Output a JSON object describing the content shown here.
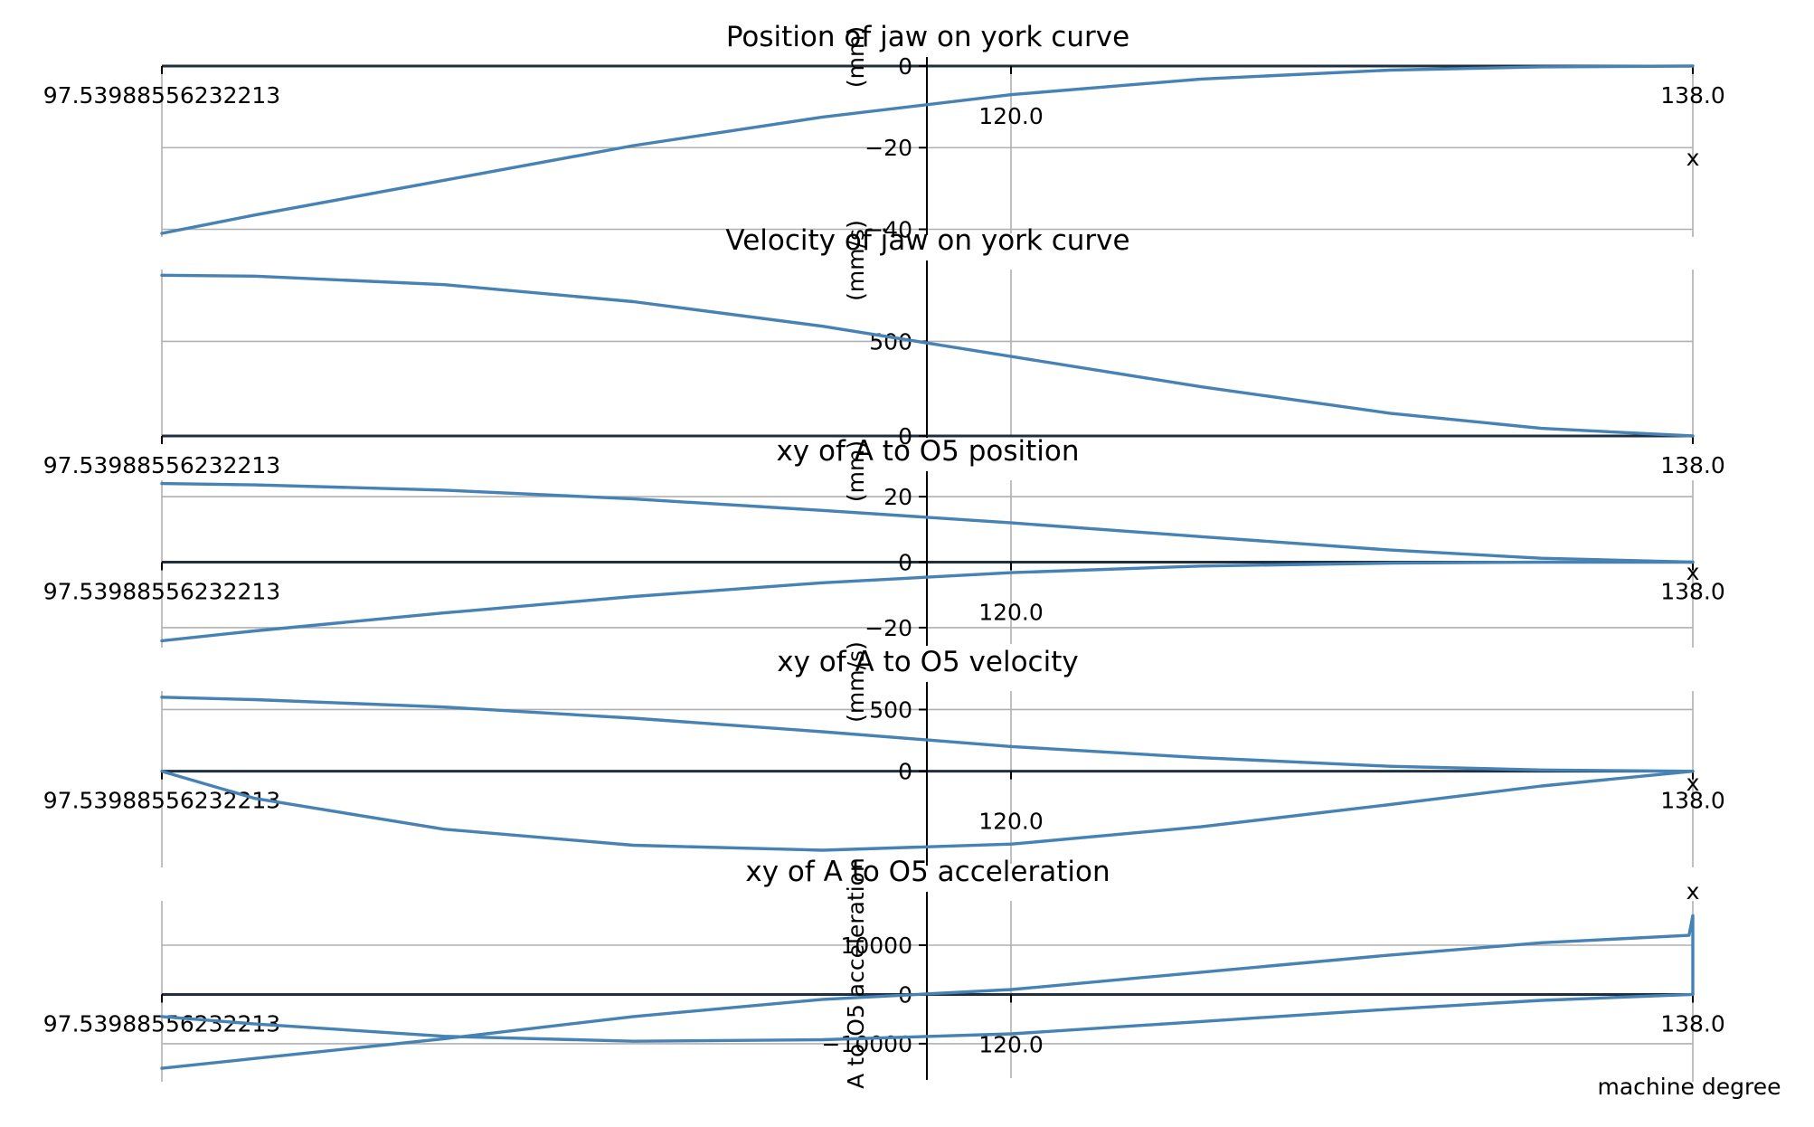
{
  "figure": {
    "bottom_xlabel": "machine degree"
  },
  "colors": {
    "series": "#4682b4",
    "grid": "#b0b0b0",
    "axis": "#000000"
  },
  "chart_data": [
    {
      "type": "line",
      "title": "Position of jaw on york curve",
      "ylabel": "(mm)",
      "xlabel": "x",
      "x_tick_labels": [
        "97.53988556232213",
        "120.0",
        "138.0"
      ],
      "xlim": [
        97.54,
        138.0
      ],
      "ylim": [
        -41,
        0
      ],
      "y_ticks": [
        0,
        -20,
        -40
      ],
      "y_tick_labels": [
        "0",
        "−20",
        "−40"
      ],
      "grid": true,
      "series": [
        {
          "x": [
            97.54,
            100,
            105,
            110,
            115,
            120,
            125,
            130,
            134,
            138
          ],
          "values": [
            -41,
            -36.5,
            -28,
            -19.5,
            -12.5,
            -7,
            -3.2,
            -1,
            -0.2,
            0
          ]
        }
      ]
    },
    {
      "type": "line",
      "title": "Velocity of jaw on york curve",
      "ylabel": "(mm/s)",
      "xlabel": "",
      "x_tick_labels": [
        "97.53988556232213",
        "138.0"
      ],
      "xlim": [
        97.54,
        138.0
      ],
      "ylim": [
        0,
        880
      ],
      "y_ticks": [
        0,
        500
      ],
      "y_tick_labels": [
        "0",
        "500"
      ],
      "grid": true,
      "series": [
        {
          "x": [
            97.54,
            100,
            105,
            110,
            115,
            120,
            125,
            130,
            134,
            138
          ],
          "values": [
            850,
            845,
            800,
            710,
            580,
            420,
            260,
            120,
            40,
            0
          ]
        }
      ]
    },
    {
      "type": "line",
      "title": "xy of A to O5 position",
      "ylabel": "(mm)",
      "xlabel": "x",
      "x_tick_labels": [
        "97.53988556232213",
        "120.0",
        "138.0"
      ],
      "xlim": [
        97.54,
        138.0
      ],
      "ylim": [
        -25,
        25
      ],
      "y_ticks": [
        20,
        0,
        -20
      ],
      "y_tick_labels": [
        "20",
        "0",
        "−20"
      ],
      "grid": true,
      "series": [
        {
          "x": [
            97.54,
            100,
            105,
            110,
            115,
            120,
            125,
            130,
            134,
            138
          ],
          "values": [
            24,
            23.6,
            22,
            19.3,
            15.8,
            12,
            7.8,
            3.7,
            1.2,
            0
          ]
        },
        {
          "x": [
            97.54,
            100,
            105,
            110,
            115,
            120,
            125,
            130,
            134,
            138
          ],
          "values": [
            -24,
            -21,
            -15.5,
            -10.5,
            -6.3,
            -3.2,
            -1.2,
            -0.3,
            0,
            0
          ]
        }
      ]
    },
    {
      "type": "line",
      "title": "xy of A to O5 velocity",
      "ylabel": "(mm/s)",
      "xlabel": "x",
      "x_tick_labels": [
        "97.53988556232213",
        "120.0",
        "138.0"
      ],
      "xlim": [
        97.54,
        138.0
      ],
      "ylim": [
        -750,
        650
      ],
      "y_ticks": [
        500,
        0
      ],
      "y_tick_labels": [
        "500",
        "0"
      ],
      "grid": true,
      "series": [
        {
          "x": [
            97.54,
            100,
            105,
            110,
            115,
            120,
            125,
            130,
            134,
            138
          ],
          "values": [
            600,
            580,
            520,
            430,
            320,
            200,
            110,
            40,
            10,
            0
          ]
        },
        {
          "x": [
            97.54,
            100,
            105,
            110,
            115,
            120,
            125,
            130,
            134,
            138
          ],
          "values": [
            0,
            -220,
            -470,
            -600,
            -640,
            -590,
            -450,
            -270,
            -120,
            0
          ]
        }
      ]
    },
    {
      "type": "line",
      "title": "xy of A to O5 acceleration",
      "ylabel": "A to O5 acceleration",
      "xlabel": "x",
      "x_tick_labels": [
        "97.53988556232213",
        "120.0",
        "138.0"
      ],
      "xlim": [
        97.54,
        138.0
      ],
      "ylim": [
        -17000,
        19000
      ],
      "y_ticks": [
        10000,
        0,
        -10000
      ],
      "y_tick_labels": [
        "10000",
        "0",
        "−10000"
      ],
      "grid": true,
      "series": [
        {
          "x": [
            97.54,
            100,
            105,
            110,
            115,
            120,
            125,
            130,
            134,
            137.9,
            138,
            138
          ],
          "values": [
            -15000,
            -13000,
            -9000,
            -4500,
            -1000,
            1000,
            4500,
            8000,
            10500,
            12000,
            16000,
            0
          ]
        },
        {
          "x": [
            97.54,
            100,
            105,
            110,
            115,
            120,
            125,
            130,
            134,
            138
          ],
          "values": [
            -4500,
            -6000,
            -8500,
            -9500,
            -9200,
            -8000,
            -5500,
            -3000,
            -1200,
            0
          ]
        }
      ]
    }
  ]
}
